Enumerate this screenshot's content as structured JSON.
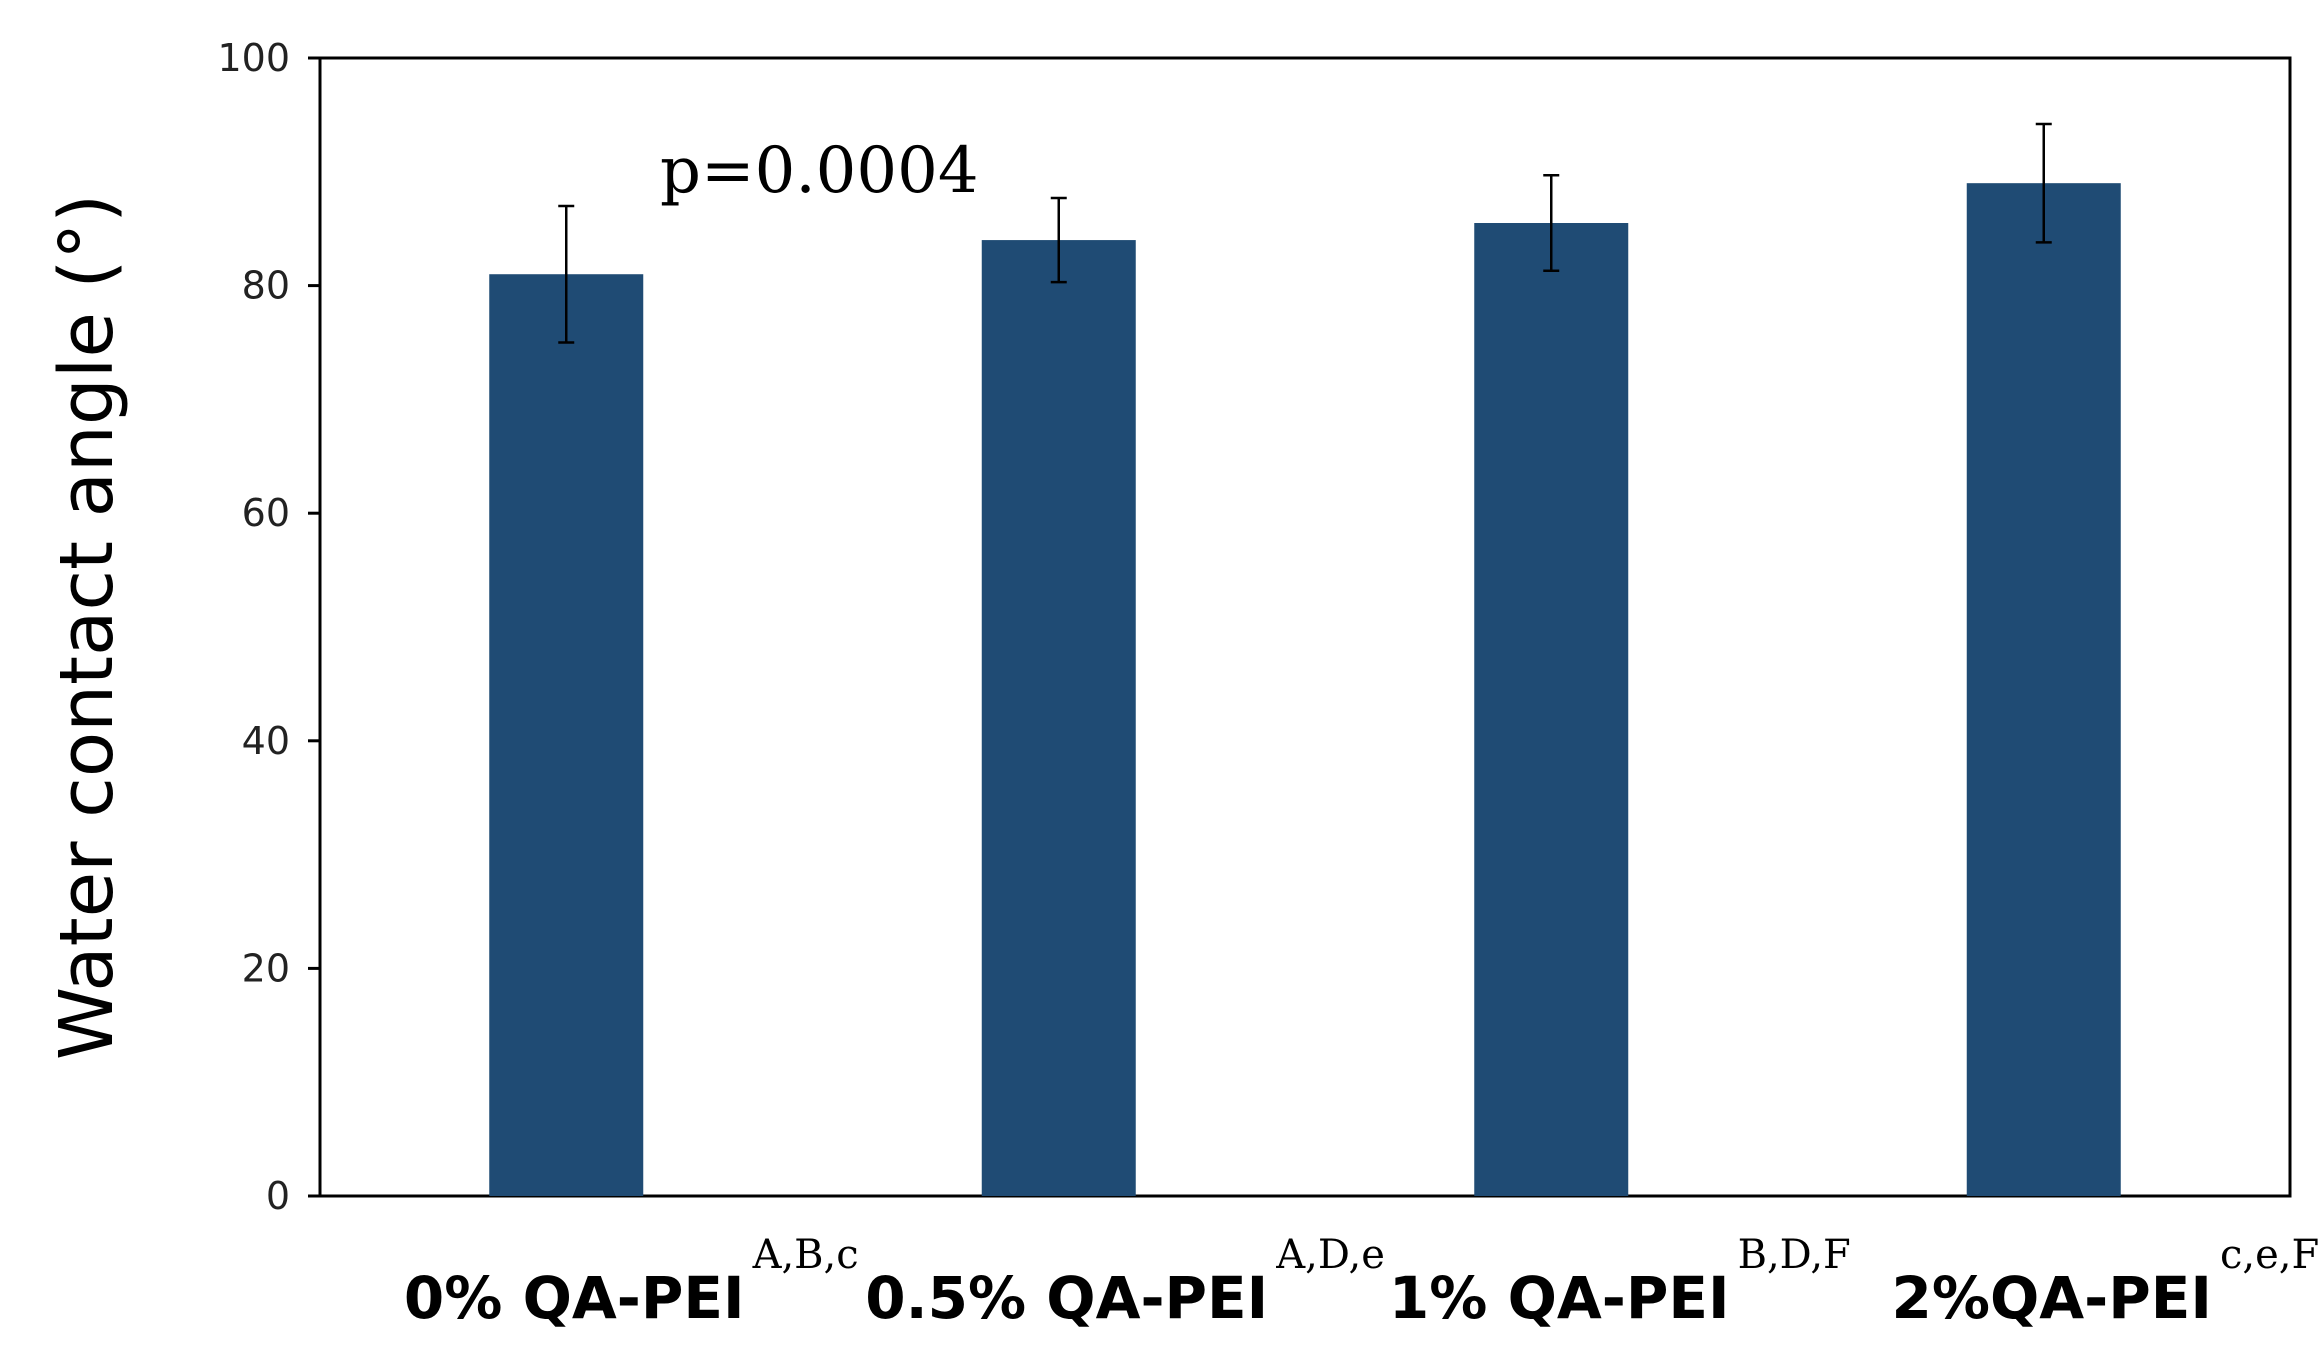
{
  "chart_data": {
    "type": "bar",
    "title": "",
    "xlabel": "",
    "ylabel": "Water contact angle (°)",
    "ylim": [
      0,
      100
    ],
    "yticks": [
      0,
      20,
      40,
      60,
      80,
      100
    ],
    "grid": false,
    "legend": "none",
    "bar_color": "#1f4b74",
    "categories": [
      "0% QA-PEI",
      "0.5% QA-PEI",
      "1% QA-PEI",
      "2%QA-PEI"
    ],
    "superscripts": [
      "A,B,c",
      "A,D,e",
      "B,D,F",
      "c,e,F"
    ],
    "values": [
      81,
      84,
      85.5,
      89
    ],
    "errors": [
      6,
      3.7,
      4.2,
      5.2
    ],
    "annotation": "p=0.0004"
  }
}
